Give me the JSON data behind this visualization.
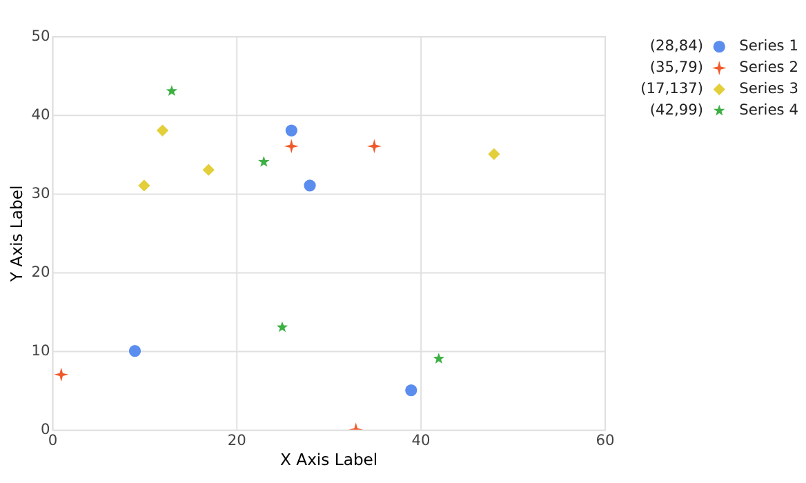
{
  "chart_data": {
    "type": "scatter",
    "xlabel": "X Axis Label",
    "ylabel": "Y Axis Label",
    "xlim": [
      0,
      60
    ],
    "xticks": [
      0,
      20,
      40,
      60
    ],
    "ylim": [
      0,
      50
    ],
    "yticks": [
      0,
      10,
      20,
      30,
      40,
      50
    ],
    "grid": true,
    "legend": "top right",
    "annotations": [
      "(28,84)",
      "(35,79)",
      "(17,137)",
      "(42,99)"
    ],
    "series": [
      {
        "name": "Series 1",
        "color": "#5b8def",
        "marker": "circle",
        "x": [
          9,
          26,
          28,
          39
        ],
        "values": [
          10,
          38,
          31,
          5
        ]
      },
      {
        "name": "Series 2",
        "color": "#f0592a",
        "marker": "cross",
        "x": [
          1,
          26,
          35,
          33
        ],
        "values": [
          7,
          36,
          36,
          0
        ]
      },
      {
        "name": "Series 3",
        "color": "#e2cf3a",
        "marker": "diamond",
        "x": [
          10,
          12,
          17,
          48
        ],
        "values": [
          31,
          38,
          33,
          35
        ]
      },
      {
        "name": "Series 4",
        "color": "#3cb043",
        "marker": "star",
        "x": [
          13,
          23,
          25,
          42
        ],
        "values": [
          43,
          34,
          13,
          9
        ]
      }
    ]
  }
}
